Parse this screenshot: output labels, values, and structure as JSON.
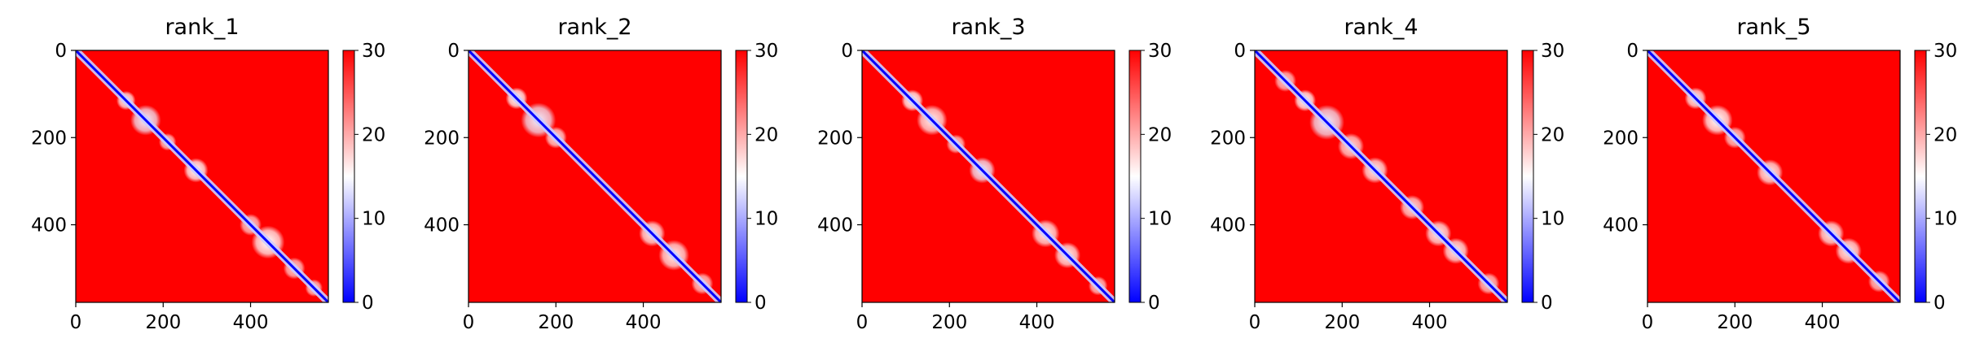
{
  "chart_data": [
    {
      "type": "heatmap",
      "title": "rank_1",
      "xticks": [
        "0",
        "200",
        "400"
      ],
      "yticks": [
        "0",
        "200",
        "400"
      ],
      "xlim": [
        0,
        578
      ],
      "ylim": [
        578,
        0
      ],
      "colorbar": {
        "ticks": [
          "0",
          "10",
          "20",
          "30"
        ],
        "range": [
          0,
          30
        ],
        "cmap": "bwr"
      },
      "diagonal_value": 0,
      "background_value": 30,
      "low_regions": [
        {
          "center": [
            115,
            115
          ],
          "radius": 22,
          "value": 16
        },
        {
          "center": [
            160,
            160
          ],
          "radius": 35,
          "value": 14
        },
        {
          "center": [
            210,
            210
          ],
          "radius": 20,
          "value": 18
        },
        {
          "center": [
            275,
            275
          ],
          "radius": 28,
          "value": 15
        },
        {
          "center": [
            400,
            400
          ],
          "radius": 25,
          "value": 18
        },
        {
          "center": [
            440,
            440
          ],
          "radius": 38,
          "value": 15
        },
        {
          "center": [
            500,
            500
          ],
          "radius": 25,
          "value": 18
        },
        {
          "center": [
            545,
            545
          ],
          "radius": 20,
          "value": 18
        }
      ]
    },
    {
      "type": "heatmap",
      "title": "rank_2",
      "xticks": [
        "0",
        "200",
        "400"
      ],
      "yticks": [
        "0",
        "200",
        "400"
      ],
      "xlim": [
        0,
        578
      ],
      "ylim": [
        578,
        0
      ],
      "colorbar": {
        "ticks": [
          "0",
          "10",
          "20",
          "30"
        ],
        "range": [
          0,
          30
        ],
        "cmap": "bwr"
      },
      "diagonal_value": 0,
      "background_value": 30,
      "low_regions": [
        {
          "center": [
            110,
            110
          ],
          "radius": 25,
          "value": 15
        },
        {
          "center": [
            160,
            160
          ],
          "radius": 40,
          "value": 14
        },
        {
          "center": [
            200,
            200
          ],
          "radius": 25,
          "value": 17
        },
        {
          "center": [
            420,
            420
          ],
          "radius": 30,
          "value": 16
        },
        {
          "center": [
            470,
            470
          ],
          "radius": 35,
          "value": 16
        },
        {
          "center": [
            535,
            535
          ],
          "radius": 25,
          "value": 18
        }
      ]
    },
    {
      "type": "heatmap",
      "title": "rank_3",
      "xticks": [
        "0",
        "200",
        "400"
      ],
      "yticks": [
        "0",
        "200",
        "400"
      ],
      "xlim": [
        0,
        578
      ],
      "ylim": [
        578,
        0
      ],
      "colorbar": {
        "ticks": [
          "0",
          "10",
          "20",
          "30"
        ],
        "range": [
          0,
          30
        ],
        "cmap": "bwr"
      },
      "diagonal_value": 0,
      "background_value": 30,
      "low_regions": [
        {
          "center": [
            115,
            115
          ],
          "radius": 25,
          "value": 15
        },
        {
          "center": [
            160,
            160
          ],
          "radius": 35,
          "value": 16
        },
        {
          "center": [
            215,
            215
          ],
          "radius": 22,
          "value": 18
        },
        {
          "center": [
            275,
            275
          ],
          "radius": 30,
          "value": 14
        },
        {
          "center": [
            420,
            420
          ],
          "radius": 32,
          "value": 16
        },
        {
          "center": [
            470,
            470
          ],
          "radius": 30,
          "value": 16
        },
        {
          "center": [
            540,
            540
          ],
          "radius": 22,
          "value": 18
        }
      ]
    },
    {
      "type": "heatmap",
      "title": "rank_4",
      "xticks": [
        "0",
        "200",
        "400"
      ],
      "yticks": [
        "0",
        "200",
        "400"
      ],
      "xlim": [
        0,
        578
      ],
      "ylim": [
        578,
        0
      ],
      "colorbar": {
        "ticks": [
          "0",
          "10",
          "20",
          "30"
        ],
        "range": [
          0,
          30
        ],
        "cmap": "bwr"
      },
      "diagonal_value": 0,
      "background_value": 30,
      "low_regions": [
        {
          "center": [
            70,
            70
          ],
          "radius": 25,
          "value": 18
        },
        {
          "center": [
            115,
            115
          ],
          "radius": 25,
          "value": 15
        },
        {
          "center": [
            165,
            165
          ],
          "radius": 40,
          "value": 14
        },
        {
          "center": [
            220,
            220
          ],
          "radius": 30,
          "value": 17
        },
        {
          "center": [
            275,
            275
          ],
          "radius": 30,
          "value": 16
        },
        {
          "center": [
            360,
            360
          ],
          "radius": 28,
          "value": 17
        },
        {
          "center": [
            420,
            420
          ],
          "radius": 30,
          "value": 16
        },
        {
          "center": [
            460,
            460
          ],
          "radius": 30,
          "value": 16
        },
        {
          "center": [
            535,
            535
          ],
          "radius": 25,
          "value": 18
        }
      ]
    },
    {
      "type": "heatmap",
      "title": "rank_5",
      "xticks": [
        "0",
        "200",
        "400"
      ],
      "yticks": [
        "0",
        "200",
        "400"
      ],
      "xlim": [
        0,
        578
      ],
      "ylim": [
        578,
        0
      ],
      "colorbar": {
        "ticks": [
          "0",
          "10",
          "20",
          "30"
        ],
        "range": [
          0,
          30
        ],
        "cmap": "bwr"
      },
      "diagonal_value": 0,
      "background_value": 30,
      "low_regions": [
        {
          "center": [
            110,
            110
          ],
          "radius": 25,
          "value": 16
        },
        {
          "center": [
            160,
            160
          ],
          "radius": 35,
          "value": 15
        },
        {
          "center": [
            200,
            200
          ],
          "radius": 25,
          "value": 18
        },
        {
          "center": [
            280,
            280
          ],
          "radius": 30,
          "value": 16
        },
        {
          "center": [
            420,
            420
          ],
          "radius": 30,
          "value": 16
        },
        {
          "center": [
            460,
            460
          ],
          "radius": 30,
          "value": 16
        },
        {
          "center": [
            530,
            530
          ],
          "radius": 25,
          "value": 18
        }
      ]
    }
  ],
  "colors": {
    "low": "#0000ff",
    "mid": "#ffffff",
    "high": "#ff0000",
    "axis": "#000000"
  }
}
